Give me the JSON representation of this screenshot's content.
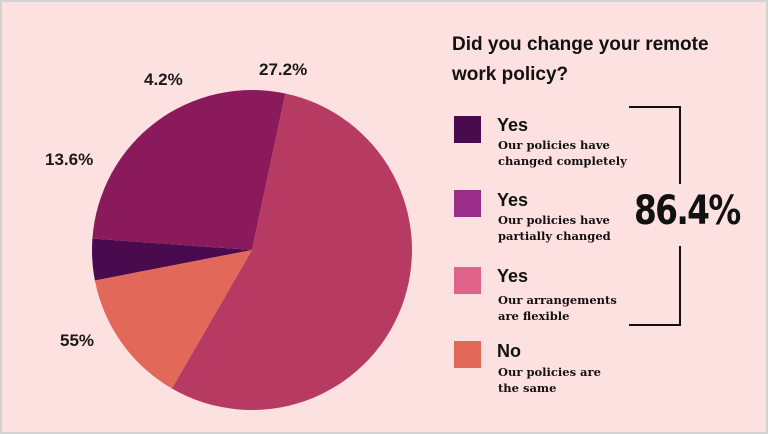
{
  "chart_data": {
    "type": "pie",
    "title": "Did you change your remote work policy?",
    "slices": [
      {
        "label": "Yes",
        "description": "Our policies have changed completely",
        "value": 4.2,
        "display": "4.2%",
        "color": "#4a0a4e"
      },
      {
        "label": "Yes",
        "description": "Our policies have partially changed",
        "value": 27.2,
        "display": "27.2%",
        "color": "#8a1a5c"
      },
      {
        "label": "Yes",
        "description": "Our arrangements are flexible",
        "value": 55,
        "display": "55%",
        "color": "#b73a63"
      },
      {
        "label": "No",
        "description": "Our policies are the same",
        "value": 13.6,
        "display": "13.6%",
        "color": "#e2685a"
      }
    ],
    "legend": {
      "position": "right",
      "items": [
        {
          "label": "Yes",
          "line1": "Our policies have",
          "line2": "changed completely",
          "color": "#4a0a4e"
        },
        {
          "label": "Yes",
          "line1": "Our policies have",
          "line2": "partially changed",
          "color": "#9a2d8a"
        },
        {
          "label": "Yes",
          "line1": "Our arrangements",
          "line2": "are flexible",
          "color": "#e0648a"
        },
        {
          "label": "No",
          "line1": "Our policies are",
          "line2": "the same",
          "color": "#e2685a"
        }
      ]
    },
    "annotation": "86.4%"
  }
}
